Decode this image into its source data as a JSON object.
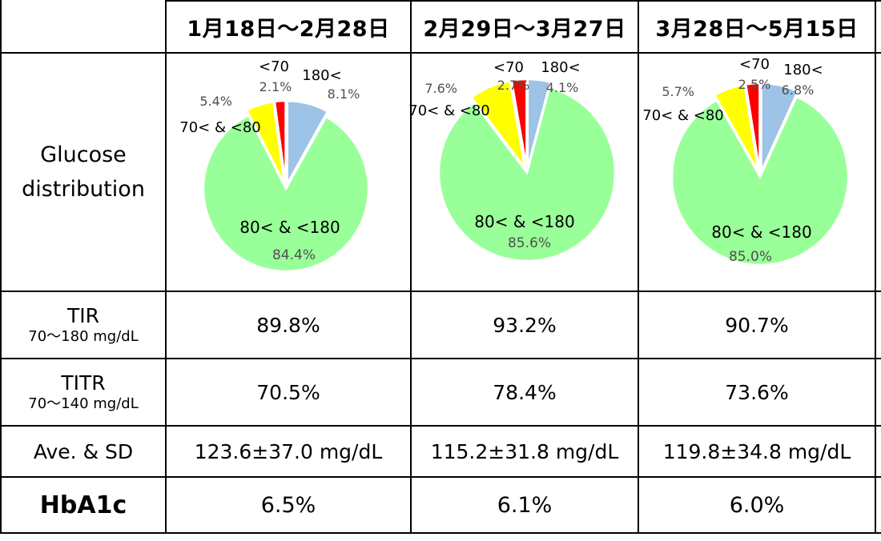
{
  "columns": [
    "1月18日～2月28日",
    "2月29日～3月27日",
    "3月28日～5月15日"
  ],
  "rows": {
    "glucose": {
      "label_line1": "Glucose",
      "label_line2": "distribution"
    },
    "tir": {
      "label": "TIR",
      "sub": "70～180 mg/dL",
      "values": [
        "89.8%",
        "93.2%",
        "90.7%"
      ]
    },
    "titr": {
      "label": "TITR",
      "sub": "70～140 mg/dL",
      "values": [
        "70.5%",
        "78.4%",
        "73.6%"
      ]
    },
    "ave": {
      "label": "Ave. & SD",
      "values": [
        "123.6±37.0 mg/dL",
        "115.2±31.8 mg/dL",
        "119.8±34.8 mg/dL"
      ]
    },
    "hba1c": {
      "label": "HbA1c",
      "values": [
        "6.5%",
        "6.1%",
        "6.0%"
      ]
    }
  },
  "chart_data": [
    {
      "type": "pie",
      "categories": [
        "180<",
        "80< & <180",
        "70< & <80",
        "<70"
      ],
      "values": [
        8.1,
        84.4,
        5.4,
        2.1
      ],
      "labels": [
        "8.1%",
        "84.4%",
        "5.4%",
        "2.1%"
      ],
      "colors": [
        "#9dc3e6",
        "#99ff99",
        "#ffff00",
        "#ff0000"
      ]
    },
    {
      "type": "pie",
      "categories": [
        "180<",
        "80< & <180",
        "70< & <80",
        "<70"
      ],
      "values": [
        4.1,
        85.6,
        7.6,
        2.7
      ],
      "labels": [
        "4.1%",
        "85.6%",
        "7.6%",
        "2.7%"
      ],
      "colors": [
        "#9dc3e6",
        "#99ff99",
        "#ffff00",
        "#ff0000"
      ]
    },
    {
      "type": "pie",
      "categories": [
        "180<",
        "80< & <180",
        "70< & <80",
        "<70"
      ],
      "values": [
        6.8,
        85.0,
        5.7,
        2.5
      ],
      "labels": [
        "6.8%",
        "85.0%",
        "5.7%",
        "2.5%"
      ],
      "colors": [
        "#9dc3e6",
        "#99ff99",
        "#ffff00",
        "#ff0000"
      ]
    }
  ]
}
